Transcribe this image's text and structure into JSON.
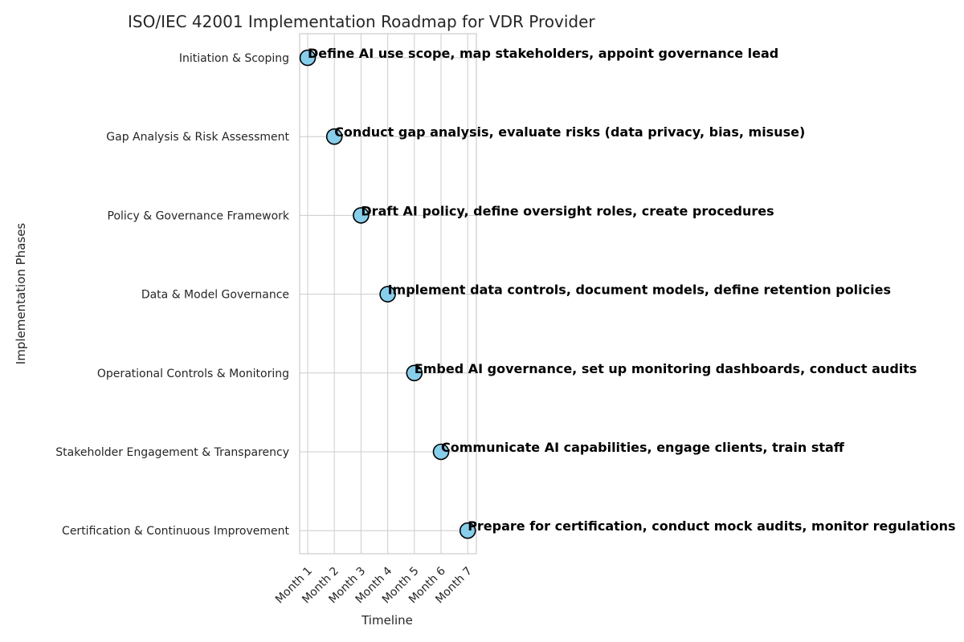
{
  "chart_data": {
    "type": "scatter",
    "title": "ISO/IEC 42001 Implementation Roadmap for VDR Provider",
    "xlabel": "Timeline",
    "ylabel": "Implementation Phases",
    "x_categories": [
      "Month 1",
      "Month 2",
      "Month 3",
      "Month 4",
      "Month 5",
      "Month 6",
      "Month 7"
    ],
    "y_categories": [
      "Initiation & Scoping",
      "Gap Analysis & Risk Assessment",
      "Policy & Governance Framework",
      "Data & Model Governance",
      "Operational Controls & Monitoring",
      "Stakeholder Engagement & Transparency",
      "Certification & Continuous Improvement"
    ],
    "points": [
      {
        "x": "Month 1",
        "y": "Initiation & Scoping",
        "annotation": "Define AI use scope, map stakeholders, appoint governance lead"
      },
      {
        "x": "Month 2",
        "y": "Gap Analysis & Risk Assessment",
        "annotation": "Conduct gap analysis, evaluate risks (data privacy, bias, misuse)"
      },
      {
        "x": "Month 3",
        "y": "Policy & Governance Framework",
        "annotation": "Draft AI policy, define oversight roles, create procedures"
      },
      {
        "x": "Month 4",
        "y": "Data & Model Governance",
        "annotation": "Implement data controls, document models, define retention policies"
      },
      {
        "x": "Month 5",
        "y": "Operational Controls & Monitoring",
        "annotation": "Embed AI governance, set up monitoring dashboards, conduct audits"
      },
      {
        "x": "Month 6",
        "y": "Stakeholder Engagement & Transparency",
        "annotation": "Communicate AI capabilities, engage clients, train staff"
      },
      {
        "x": "Month 7",
        "y": "Certification & Continuous Improvement",
        "annotation": "Prepare for certification, conduct mock audits, monitor regulations"
      }
    ],
    "grid": true,
    "marker_color": "#87ceeb",
    "marker_edge_color": "#000000",
    "grid_color": "#cccccc",
    "text_color": "#262626"
  }
}
